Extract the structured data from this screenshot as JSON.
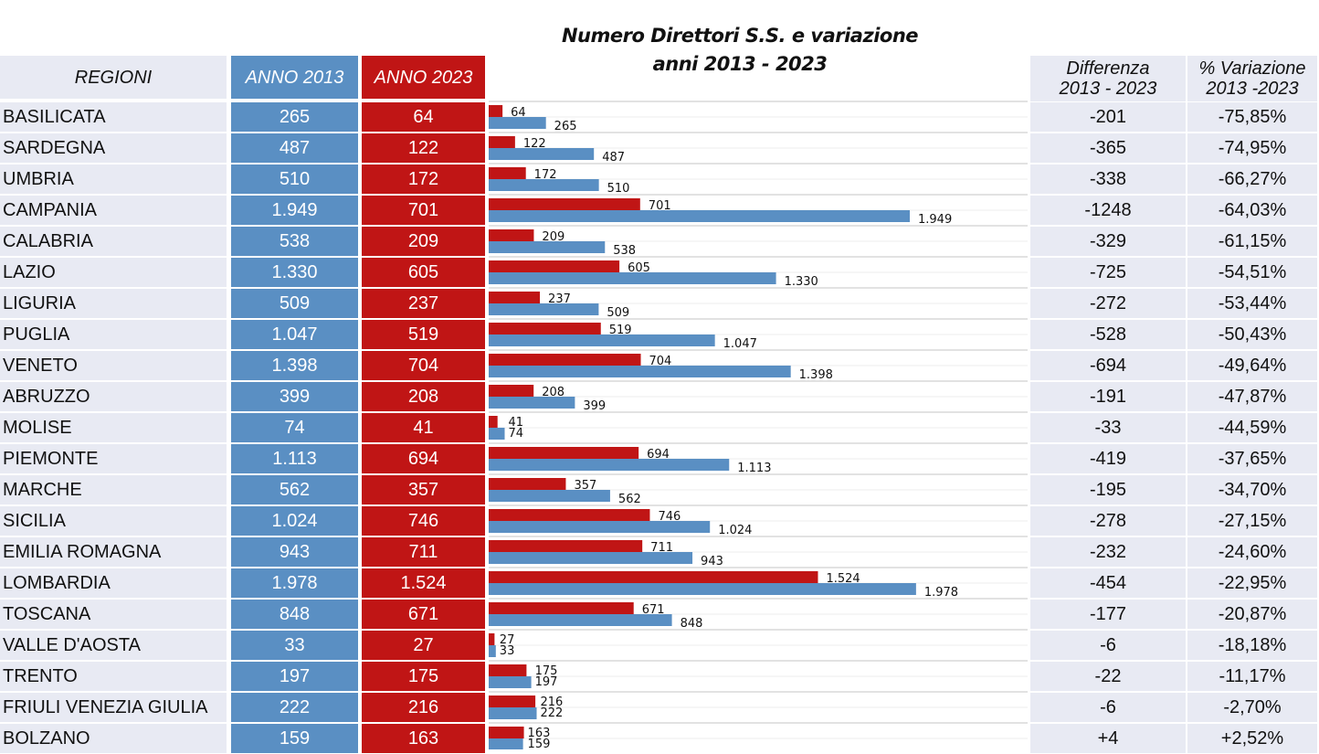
{
  "title_line1": "Numero Direttori  S.S. e variazione",
  "title_line2": "anni 2013 - 2023",
  "headers": {
    "region": "REGIONI",
    "y2013": "ANNO 2013",
    "y2023": "ANNO 2023",
    "diff_line1": "Differenza",
    "diff_line2": "2013 - 2023",
    "pct_line1": "% Variazione",
    "pct_line2": "2013 -2023"
  },
  "colors": {
    "y2013": "#5a8fc3",
    "y2023": "#c01515",
    "panel": "#e8eaf3",
    "grid": "#d9d9d9"
  },
  "rows": [
    {
      "region": "BASILICATA",
      "v2013": "265",
      "v2023": "64",
      "diff": "-201",
      "pct": "-75,85%"
    },
    {
      "region": "SARDEGNA",
      "v2013": "487",
      "v2023": "122",
      "diff": "-365",
      "pct": "-74,95%"
    },
    {
      "region": "UMBRIA",
      "v2013": "510",
      "v2023": "172",
      "diff": "-338",
      "pct": "-66,27%"
    },
    {
      "region": "CAMPANIA",
      "v2013": "1.949",
      "v2023": "701",
      "diff": "-1248",
      "pct": "-64,03%"
    },
    {
      "region": "CALABRIA",
      "v2013": "538",
      "v2023": "209",
      "diff": "-329",
      "pct": "-61,15%"
    },
    {
      "region": "LAZIO",
      "v2013": "1.330",
      "v2023": "605",
      "diff": "-725",
      "pct": "-54,51%"
    },
    {
      "region": "LIGURIA",
      "v2013": "509",
      "v2023": "237",
      "diff": "-272",
      "pct": "-53,44%"
    },
    {
      "region": "PUGLIA",
      "v2013": "1.047",
      "v2023": "519",
      "diff": "-528",
      "pct": "-50,43%"
    },
    {
      "region": "VENETO",
      "v2013": "1.398",
      "v2023": "704",
      "diff": "-694",
      "pct": "-49,64%"
    },
    {
      "region": "ABRUZZO",
      "v2013": "399",
      "v2023": "208",
      "diff": "-191",
      "pct": "-47,87%"
    },
    {
      "region": "MOLISE",
      "v2013": "74",
      "v2023": "41",
      "diff": "-33",
      "pct": "-44,59%"
    },
    {
      "region": "PIEMONTE",
      "v2013": "1.113",
      "v2023": "694",
      "diff": "-419",
      "pct": "-37,65%"
    },
    {
      "region": "MARCHE",
      "v2013": "562",
      "v2023": "357",
      "diff": "-195",
      "pct": "-34,70%"
    },
    {
      "region": "SICILIA",
      "v2013": "1.024",
      "v2023": "746",
      "diff": "-278",
      "pct": "-27,15%"
    },
    {
      "region": "EMILIA ROMAGNA",
      "v2013": "943",
      "v2023": "711",
      "diff": "-232",
      "pct": "-24,60%"
    },
    {
      "region": "LOMBARDIA",
      "v2013": "1.978",
      "v2023": "1.524",
      "diff": "-454",
      "pct": "-22,95%"
    },
    {
      "region": "TOSCANA",
      "v2013": "848",
      "v2023": "671",
      "diff": "-177",
      "pct": "-20,87%"
    },
    {
      "region": "VALLE D'AOSTA",
      "v2013": "33",
      "v2023": "27",
      "diff": "-6",
      "pct": "-18,18%"
    },
    {
      "region": "TRENTO",
      "v2013": "197",
      "v2023": "175",
      "diff": "-22",
      "pct": "-11,17%"
    },
    {
      "region": "FRIULI VENEZIA GIULIA",
      "v2013": "222",
      "v2023": "216",
      "diff": "-6",
      "pct": "-2,70%"
    },
    {
      "region": "BOLZANO",
      "v2013": "159",
      "v2023": "163",
      "diff": "+4",
      "pct": "+2,52%"
    }
  ],
  "chart_data": {
    "type": "bar",
    "orientation": "horizontal",
    "title": "Numero Direttori  S.S. e variazione anni 2013 - 2023",
    "categories": [
      "BASILICATA",
      "SARDEGNA",
      "UMBRIA",
      "CAMPANIA",
      "CALABRIA",
      "LAZIO",
      "LIGURIA",
      "PUGLIA",
      "VENETO",
      "ABRUZZO",
      "MOLISE",
      "PIEMONTE",
      "MARCHE",
      "SICILIA",
      "EMILIA ROMAGNA",
      "LOMBARDIA",
      "TOSCANA",
      "VALLE D'AOSTA",
      "TRENTO",
      "FRIULI VENEZIA GIULIA",
      "BOLZANO"
    ],
    "series": [
      {
        "name": "ANNO 2023",
        "color": "#c01515",
        "values": [
          64,
          122,
          172,
          701,
          209,
          605,
          237,
          519,
          704,
          208,
          41,
          694,
          357,
          746,
          711,
          1524,
          671,
          27,
          175,
          216,
          163
        ],
        "labels": [
          "64",
          "122",
          "172",
          "701",
          "209",
          "605",
          "237",
          "519",
          "704",
          "208",
          "41",
          "694",
          "357",
          "746",
          "711",
          "1.524",
          "671",
          "27",
          "175",
          "216",
          "163"
        ]
      },
      {
        "name": "ANNO 2013",
        "color": "#5a8fc3",
        "values": [
          265,
          487,
          510,
          1949,
          538,
          1330,
          509,
          1047,
          1398,
          399,
          74,
          1113,
          562,
          1024,
          943,
          1978,
          848,
          33,
          197,
          222,
          159
        ],
        "labels": [
          "265",
          "487",
          "510",
          "1.949",
          "538",
          "1.330",
          "509",
          "1.047",
          "1.398",
          "399",
          "74",
          "1.113",
          "562",
          "1.024",
          "943",
          "1.978",
          "848",
          "33",
          "197",
          "222",
          "159"
        ]
      }
    ],
    "xlim": [
      0,
      2450
    ],
    "grid": true,
    "legend": "none"
  }
}
